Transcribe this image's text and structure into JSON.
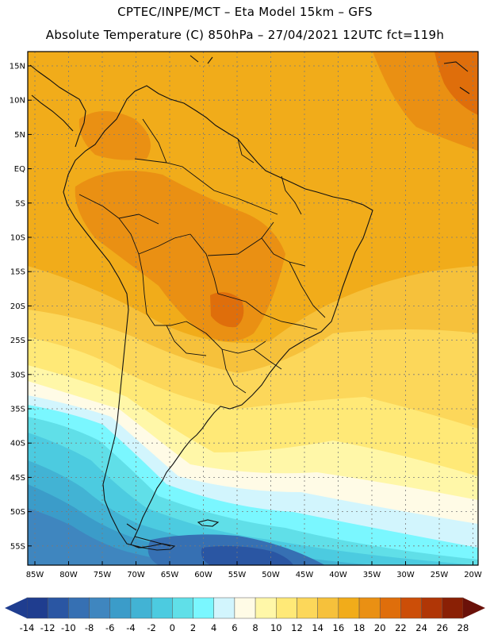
{
  "header": {
    "line1": "CPTEC/INPE/MCT –  Eta Model 15km – GFS",
    "line2": "Absolute Temperature (C) 850hPa – 27/04/2021 12UTC fct=119h"
  },
  "map": {
    "lat_labels": [
      "15N",
      "10N",
      "5N",
      "EQ",
      "5S",
      "10S",
      "15S",
      "20S",
      "25S",
      "30S",
      "35S",
      "40S",
      "45S",
      "50S",
      "55S"
    ],
    "lon_labels": [
      "85W",
      "80W",
      "75W",
      "70W",
      "65W",
      "60W",
      "55W",
      "50W",
      "45W",
      "40W",
      "35W",
      "30W",
      "25W",
      "20W"
    ]
  },
  "colorbar": {
    "labels": [
      "-14",
      "-12",
      "-10",
      "-8",
      "-6",
      "-4",
      "-2",
      "0",
      "2",
      "4",
      "6",
      "8",
      "10",
      "12",
      "14",
      "16",
      "18",
      "20",
      "22",
      "24",
      "26",
      "28"
    ],
    "colors": [
      "#1f3d8f",
      "#2a56a3",
      "#3670b3",
      "#3f86bf",
      "#3b9cc9",
      "#42b3d4",
      "#4ccbe0",
      "#60dfe8",
      "#7af7ff",
      "#d2f5fd",
      "#fffbe6",
      "#fff7a8",
      "#ffe977",
      "#fcd75a",
      "#f6c13b",
      "#f1ac1a",
      "#ea9013",
      "#df6e0b",
      "#cc4e08",
      "#b03606",
      "#8a2005",
      "#6a1109"
    ],
    "under_color": "#1f3d8f",
    "over_color": "#6a1109"
  }
}
